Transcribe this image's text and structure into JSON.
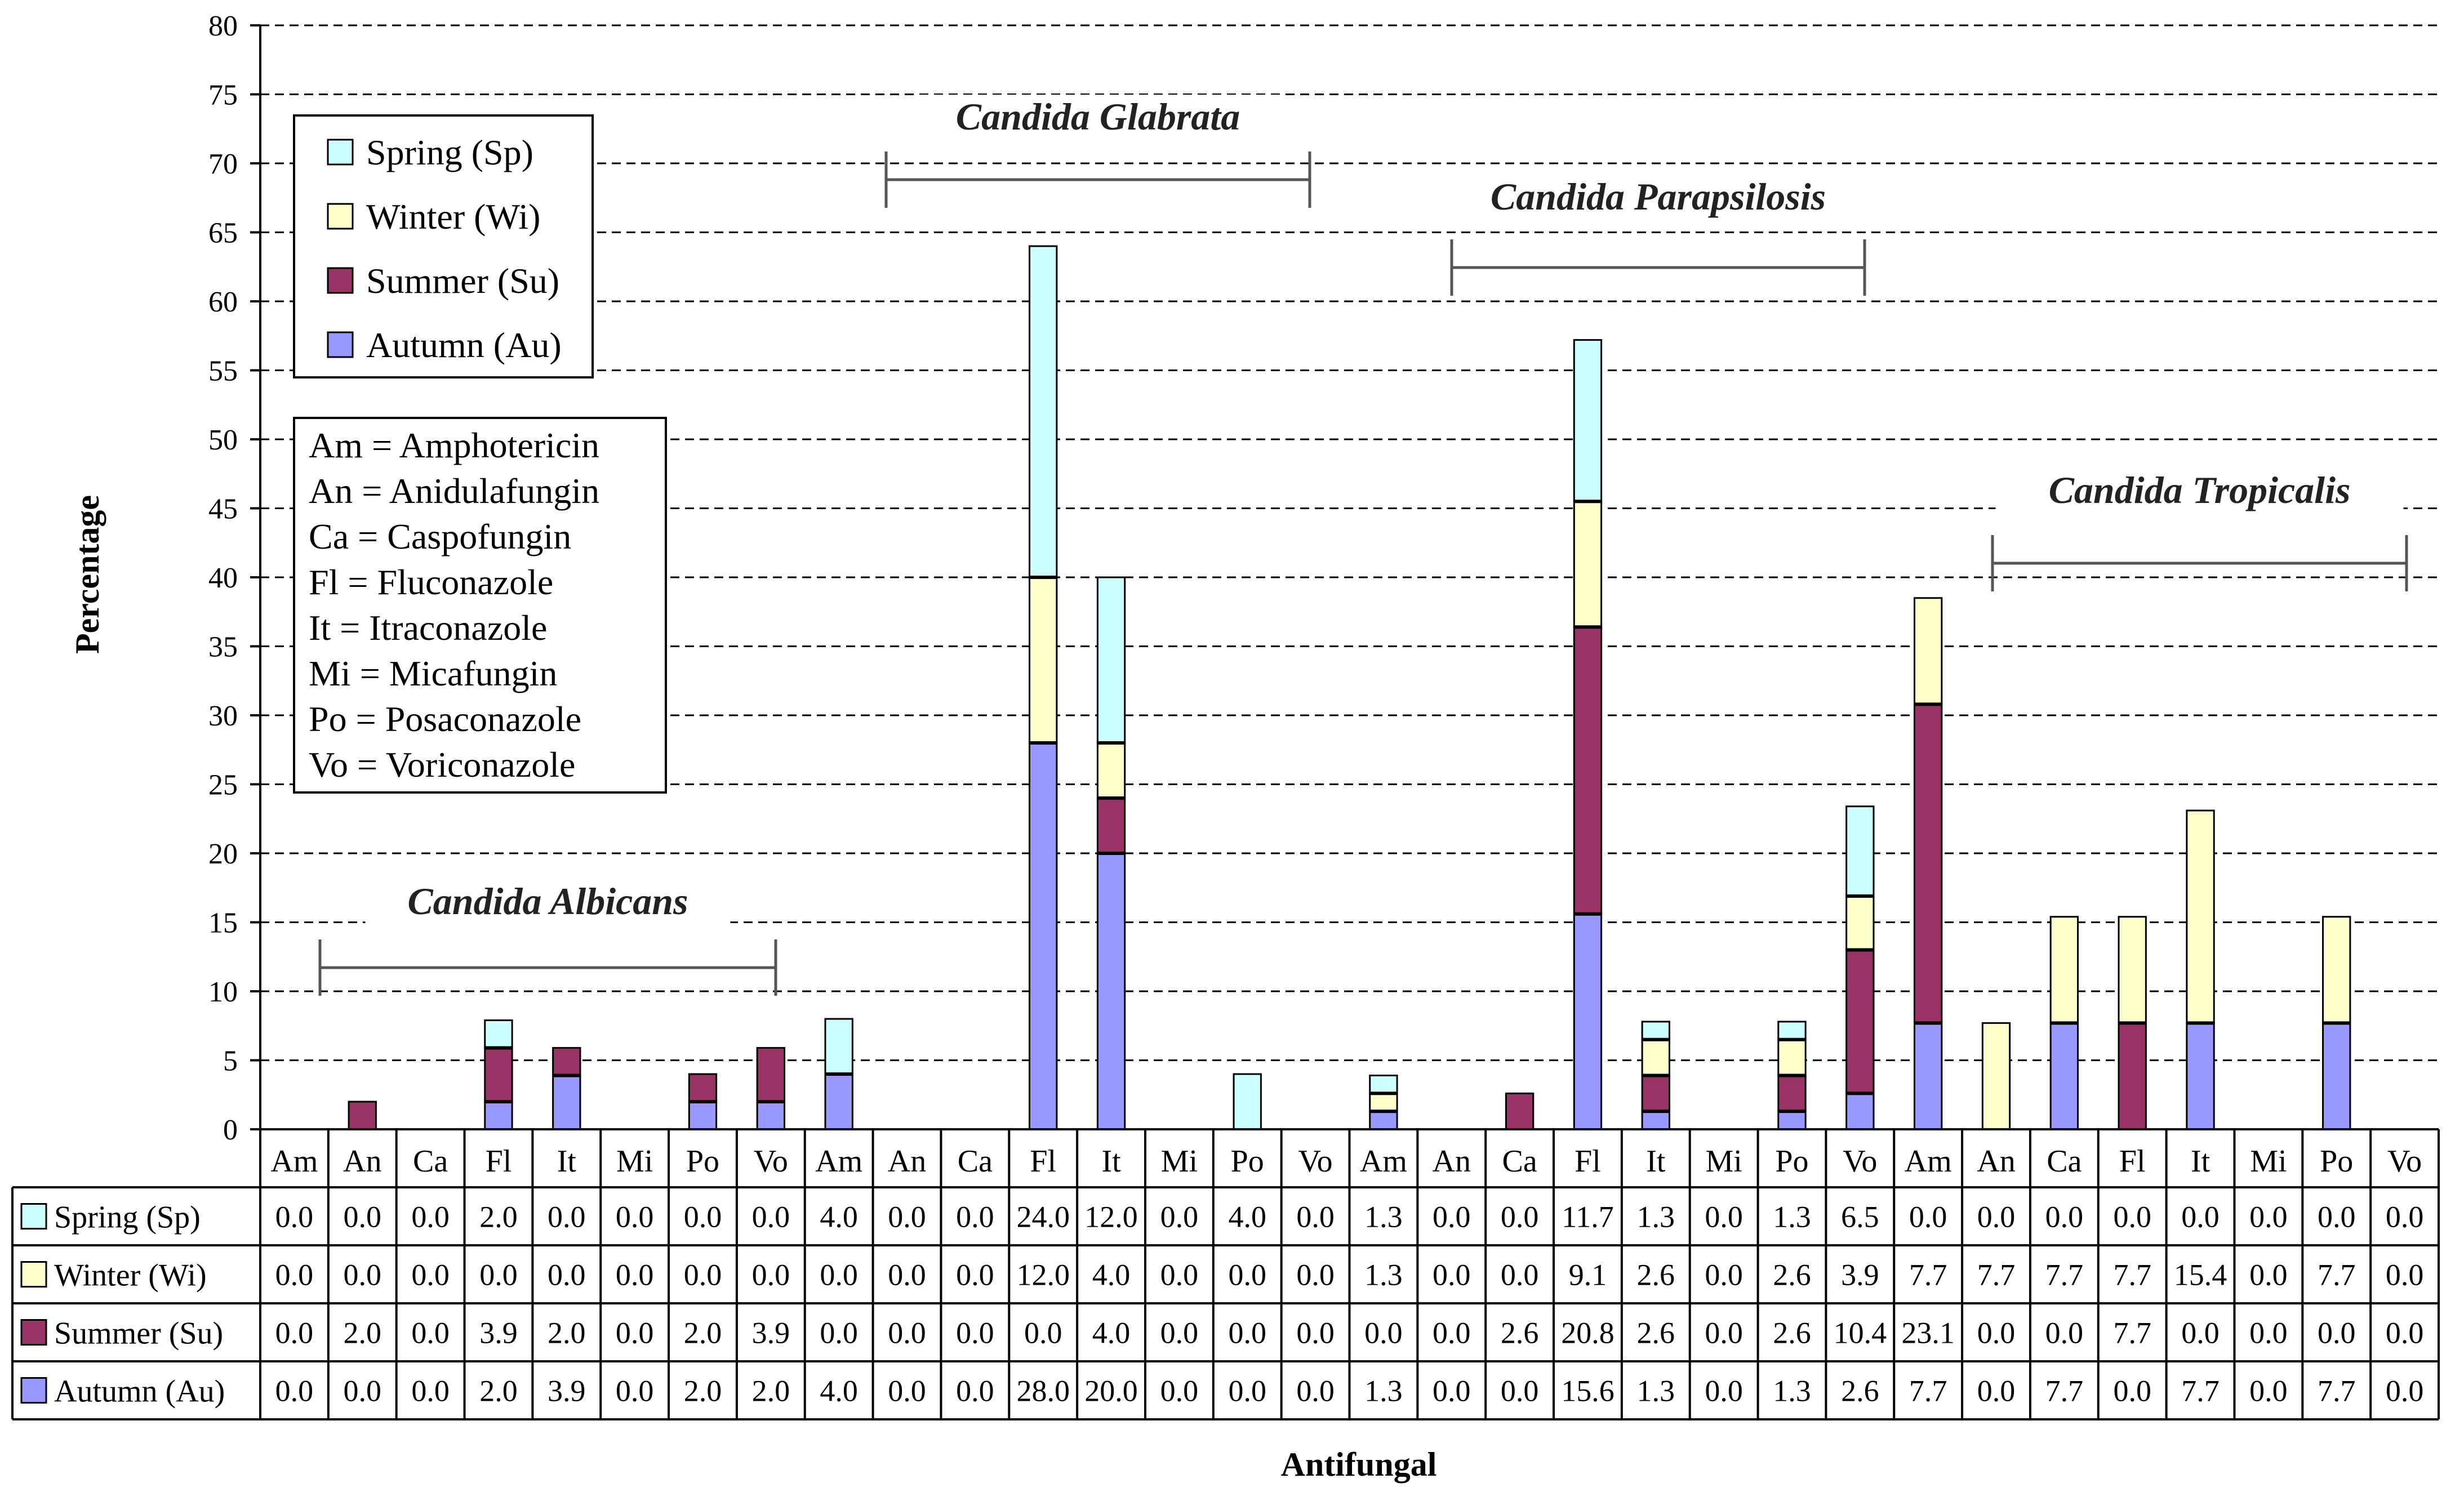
{
  "chart_data": {
    "type": "bar",
    "stacked": true,
    "ylabel": "Percentage",
    "xlabel": "Antifungal",
    "ylim": [
      0,
      80
    ],
    "yticks": [
      0,
      5,
      10,
      15,
      20,
      25,
      30,
      35,
      40,
      45,
      50,
      55,
      60,
      65,
      70,
      75,
      80
    ],
    "categories": [
      "Am",
      "An",
      "Ca",
      "Fl",
      "It",
      "Mi",
      "Po",
      "Vo",
      "Am",
      "An",
      "Ca",
      "Fl",
      "It",
      "Mi",
      "Po",
      "Vo",
      "Am",
      "An",
      "Ca",
      "Fl",
      "It",
      "Mi",
      "Po",
      "Vo",
      "Am",
      "An",
      "Ca",
      "Fl",
      "It",
      "Mi",
      "Po",
      "Vo"
    ],
    "groups": [
      {
        "name": "Candida Albicans",
        "start": 0,
        "end": 7
      },
      {
        "name": "Candida Glabrata",
        "start": 8,
        "end": 15
      },
      {
        "name": "Candida Parapsilosis",
        "start": 16,
        "end": 23
      },
      {
        "name": "Candida Tropicalis",
        "start": 24,
        "end": 31
      }
    ],
    "series": [
      {
        "name": "Autumn (Au)",
        "color": "#9999ff",
        "values": [
          "0.0",
          "0.0",
          "0.0",
          "2.0",
          "3.9",
          "0.0",
          "2.0",
          "2.0",
          "4.0",
          "0.0",
          "0.0",
          "28.0",
          "20.0",
          "0.0",
          "0.0",
          "0.0",
          "1.3",
          "0.0",
          "0.0",
          "15.6",
          "1.3",
          "0.0",
          "1.3",
          "2.6",
          "7.7",
          "0.0",
          "7.7",
          "0.0",
          "7.7",
          "0.0",
          "7.7",
          "0.0"
        ]
      },
      {
        "name": "Summer (Su)",
        "color": "#993366",
        "values": [
          "0.0",
          "2.0",
          "0.0",
          "3.9",
          "2.0",
          "0.0",
          "2.0",
          "3.9",
          "0.0",
          "0.0",
          "0.0",
          "0.0",
          "4.0",
          "0.0",
          "0.0",
          "0.0",
          "0.0",
          "0.0",
          "2.6",
          "20.8",
          "2.6",
          "0.0",
          "2.6",
          "10.4",
          "23.1",
          "0.0",
          "0.0",
          "7.7",
          "0.0",
          "0.0",
          "0.0",
          "0.0"
        ]
      },
      {
        "name": "Winter (Wi)",
        "color": "#ffffcc",
        "values": [
          "0.0",
          "0.0",
          "0.0",
          "0.0",
          "0.0",
          "0.0",
          "0.0",
          "0.0",
          "0.0",
          "0.0",
          "0.0",
          "12.0",
          "4.0",
          "0.0",
          "0.0",
          "0.0",
          "1.3",
          "0.0",
          "0.0",
          "9.1",
          "2.6",
          "0.0",
          "2.6",
          "3.9",
          "7.7",
          "7.7",
          "7.7",
          "7.7",
          "15.4",
          "0.0",
          "7.7",
          "0.0"
        ]
      },
      {
        "name": "Spring (Sp)",
        "color": "#ccffff",
        "values": [
          "0.0",
          "0.0",
          "0.0",
          "2.0",
          "0.0",
          "0.0",
          "0.0",
          "0.0",
          "4.0",
          "0.0",
          "0.0",
          "24.0",
          "12.0",
          "0.0",
          "4.0",
          "0.0",
          "1.3",
          "0.0",
          "0.0",
          "11.7",
          "1.3",
          "0.0",
          "1.3",
          "6.5",
          "0.0",
          "0.0",
          "0.0",
          "0.0",
          "0.0",
          "0.0",
          "0.0",
          "0.0"
        ]
      }
    ],
    "table_row_order": [
      "Spring (Sp)",
      "Winter (Wi)",
      "Summer (Su)",
      "Autumn (Au)"
    ],
    "legend": [
      "Spring (Sp)",
      "Winter (Wi)",
      "Summer (Su)",
      "Autumn (Au)"
    ],
    "abbreviations": [
      "Am = Amphotericin",
      "An = Anidulafungin",
      "Ca = Caspofungin",
      "Fl = Fluconazole",
      "It = Itraconazole",
      "Mi = Micafungin",
      "Po = Posaconazole",
      "Vo = Voriconazole"
    ]
  }
}
